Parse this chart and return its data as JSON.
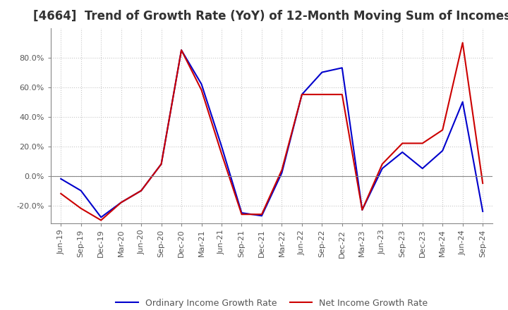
{
  "title": "[4664]  Trend of Growth Rate (YoY) of 12-Month Moving Sum of Incomes",
  "xlabel": "",
  "ylabel": "",
  "ylim": [
    -0.32,
    1.0
  ],
  "yticks": [
    -0.2,
    0.0,
    0.2,
    0.4,
    0.6,
    0.8
  ],
  "background_color": "#ffffff",
  "grid_color": "#c8c8c8",
  "x_labels": [
    "Jun-19",
    "Sep-19",
    "Dec-19",
    "Mar-20",
    "Jun-20",
    "Sep-20",
    "Dec-20",
    "Mar-21",
    "Jun-21",
    "Sep-21",
    "Dec-21",
    "Mar-22",
    "Jun-22",
    "Sep-22",
    "Dec-22",
    "Mar-23",
    "Jun-23",
    "Sep-23",
    "Dec-23",
    "Mar-24",
    "Jun-24",
    "Sep-24"
  ],
  "ordinary_income": [
    -0.02,
    -0.1,
    -0.28,
    -0.18,
    -0.1,
    0.08,
    0.85,
    0.62,
    0.2,
    -0.25,
    -0.27,
    0.02,
    0.55,
    0.7,
    0.73,
    -0.23,
    0.05,
    0.16,
    0.05,
    0.17,
    0.5,
    -0.24
  ],
  "net_income": [
    -0.12,
    -0.22,
    -0.3,
    -0.18,
    -0.1,
    0.08,
    0.85,
    0.58,
    0.15,
    -0.26,
    -0.26,
    0.04,
    0.55,
    0.55,
    0.55,
    -0.23,
    0.08,
    0.22,
    0.22,
    0.31,
    0.9,
    -0.05
  ],
  "ordinary_color": "#0000cc",
  "net_color": "#cc0000",
  "line_width": 1.5,
  "title_fontsize": 12,
  "tick_fontsize": 8,
  "legend_fontsize": 9
}
